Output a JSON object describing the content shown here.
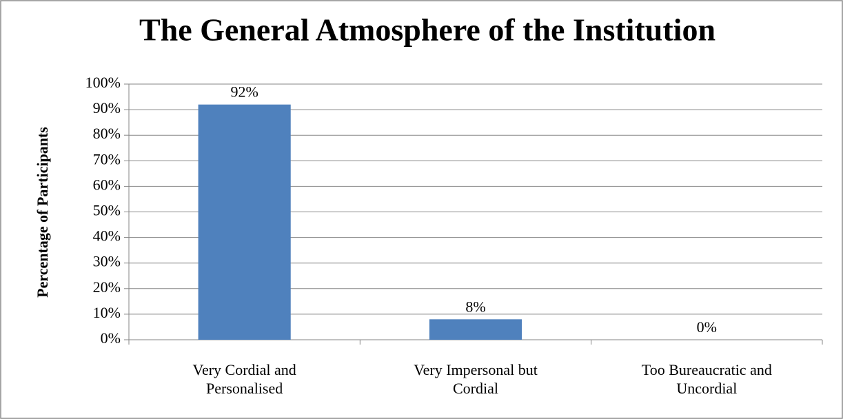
{
  "chart_data": {
    "type": "bar",
    "title": "The General Atmosphere of the Institution",
    "y_label": "Percentage of Participants",
    "categories": [
      "Very Cordial and Personalised",
      "Very Impersonal but Cordial",
      "Too Bureaucratic and Uncordial"
    ],
    "values": [
      92,
      8,
      0
    ],
    "value_labels": [
      "92%",
      "8%",
      "0%"
    ],
    "color": "#4f81bd",
    "ylim": [
      0,
      100
    ],
    "yticks": [
      {
        "value": 0,
        "label": "0%"
      },
      {
        "value": 10,
        "label": "10%"
      },
      {
        "value": 20,
        "label": "20%"
      },
      {
        "value": 30,
        "label": "30%"
      },
      {
        "value": 40,
        "label": "40%"
      },
      {
        "value": 50,
        "label": "50%"
      },
      {
        "value": 60,
        "label": "60%"
      },
      {
        "value": 70,
        "label": "70%"
      },
      {
        "value": 80,
        "label": "80%"
      },
      {
        "value": 90,
        "label": "90%"
      },
      {
        "value": 100,
        "label": "100%"
      }
    ],
    "grid": true
  }
}
